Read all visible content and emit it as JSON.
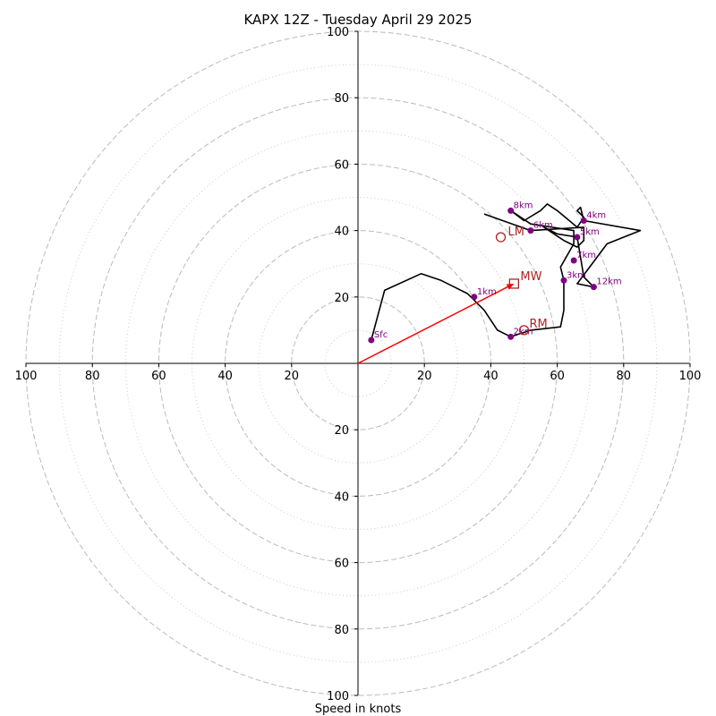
{
  "chart_data": {
    "type": "hodograph",
    "title": "KAPX 12Z - Tuesday April 29 2025",
    "xlabel": "Speed in knots",
    "units": "knots",
    "range": [
      -100,
      100
    ],
    "rings_major": [
      20,
      40,
      60,
      80,
      100
    ],
    "rings_minor": [
      10,
      30,
      50,
      70,
      90
    ],
    "tick_values": [
      20,
      40,
      60,
      80,
      100
    ],
    "tick_labels": [
      "20",
      "40",
      "60",
      "80",
      "100"
    ],
    "grid": true,
    "colors": {
      "trace": "#000000",
      "height_points": "#800080",
      "motion": "#b22222",
      "shear_vector": "#ff0000",
      "grid": "#bbbbbb"
    },
    "trace": [
      [
        4,
        7
      ],
      [
        8,
        22
      ],
      [
        19,
        27
      ],
      [
        25,
        25
      ],
      [
        33,
        21
      ],
      [
        38,
        16
      ],
      [
        42,
        10
      ],
      [
        46,
        8
      ],
      [
        52,
        10
      ],
      [
        61,
        11
      ],
      [
        62,
        16
      ],
      [
        62,
        25
      ],
      [
        61,
        29
      ],
      [
        65,
        36
      ],
      [
        65,
        40
      ],
      [
        52,
        42
      ],
      [
        46,
        46
      ],
      [
        50,
        43
      ],
      [
        55,
        46
      ],
      [
        57,
        48
      ],
      [
        60,
        46
      ],
      [
        66,
        41
      ],
      [
        68,
        44
      ],
      [
        66,
        46
      ],
      [
        67,
        47
      ],
      [
        68,
        43
      ],
      [
        85,
        40
      ],
      [
        75,
        36
      ],
      [
        66,
        24
      ],
      [
        71,
        23
      ],
      [
        68,
        26
      ],
      [
        66,
        38
      ],
      [
        60,
        39
      ],
      [
        58,
        40
      ],
      [
        56,
        41
      ],
      [
        62,
        37
      ],
      [
        66,
        35
      ],
      [
        68,
        37
      ],
      [
        68,
        41
      ],
      [
        52,
        40
      ],
      [
        38,
        45
      ]
    ],
    "height_points": [
      {
        "label": "Sfc",
        "u": 4,
        "v": 7
      },
      {
        "label": "1km",
        "u": 35,
        "v": 20
      },
      {
        "label": "2km",
        "u": 46,
        "v": 8
      },
      {
        "label": "3km",
        "u": 62,
        "v": 25
      },
      {
        "label": "4km",
        "u": 68,
        "v": 43
      },
      {
        "label": "5km",
        "u": 66,
        "v": 38
      },
      {
        "label": "6km",
        "u": 52,
        "v": 40
      },
      {
        "label": "7km",
        "u": 65,
        "v": 31
      },
      {
        "label": "8km",
        "u": 46,
        "v": 46
      },
      {
        "label": "12km",
        "u": 71,
        "v": 23
      }
    ],
    "storm_motion": {
      "LM": {
        "label": "LM",
        "u": 43,
        "v": 38
      },
      "MW": {
        "label": "MW",
        "u": 47,
        "v": 24
      },
      "RM": {
        "label": "RM",
        "u": 50,
        "v": 10
      }
    },
    "shear_vector": {
      "from": [
        0,
        0
      ],
      "to": [
        47,
        24
      ]
    }
  }
}
